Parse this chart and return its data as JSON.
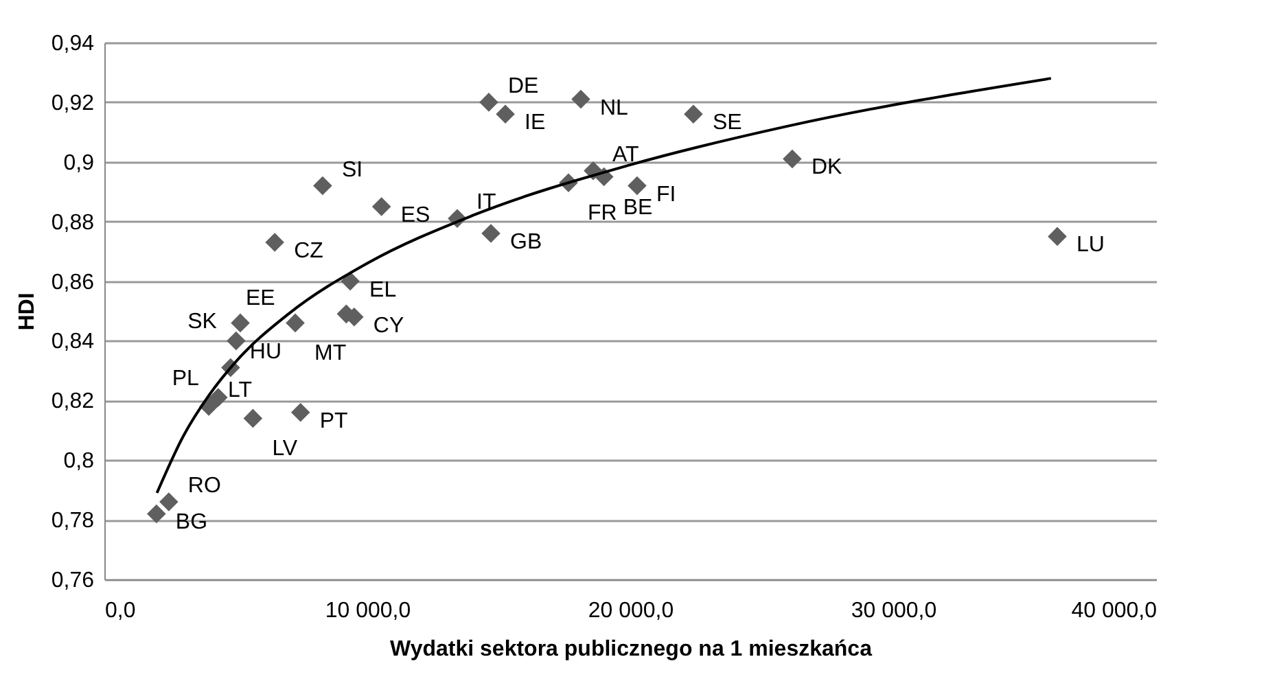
{
  "chart_data": {
    "type": "scatter",
    "xlabel": "Wydatki sektora publicznego na 1 mieszkańca",
    "ylabel": "HDI",
    "series": [
      {
        "color": "#5f5f5f",
        "marker": "diamond",
        "x": [
          1980,
          2450,
          3970,
          4330,
          4800,
          5650,
          7460,
          5170,
          5010,
          7260,
          6480,
          8300,
          10540,
          9350,
          9200,
          9500,
          13420,
          14570,
          14700,
          14620,
          15250,
          18120,
          17650,
          18590,
          19000,
          20260,
          22400,
          26160,
          36240
        ],
        "values": [
          0.782,
          0.786,
          0.818,
          0.821,
          0.831,
          0.814,
          0.816,
          0.846,
          0.84,
          0.846,
          0.873,
          0.892,
          0.885,
          0.86,
          0.849,
          0.848,
          0.881,
          null,
          0.876,
          0.92,
          0.916,
          0.921,
          0.893,
          0.897,
          0.895,
          0.892,
          0.916,
          0.901,
          0.875
        ]
      },
      {
        "type": "line",
        "color": "#000000",
        "x": [
          2000,
          3000,
          4000,
          5000,
          7000,
          10000,
          14000,
          20000,
          26000,
          36000
        ],
        "values": [
          0.789,
          0.808,
          0.822,
          0.833,
          0.849,
          0.866,
          0.882,
          0.899,
          0.912,
          0.928
        ]
      }
    ],
    "grid": "y",
    "xlim": [
      0,
      40000
    ],
    "xticks": [
      {
        "value": 0,
        "label": "0,0"
      },
      {
        "value": 10000,
        "label": "10 000,0"
      },
      {
        "value": 20000,
        "label": "20 000,0"
      },
      {
        "value": 30000,
        "label": "30 000,0"
      },
      {
        "value": 40000,
        "label": "40 000,0"
      }
    ],
    "ylim": [
      0.76,
      0.94
    ],
    "yticks": [
      {
        "value": 0.76,
        "label": "0,76"
      },
      {
        "value": 0.78,
        "label": "0,78"
      },
      {
        "value": 0.8,
        "label": "0,8"
      },
      {
        "value": 0.82,
        "label": "0,82"
      },
      {
        "value": 0.84,
        "label": "0,84"
      },
      {
        "value": 0.86,
        "label": "0,86"
      },
      {
        "value": 0.88,
        "label": "0,88"
      },
      {
        "value": 0.9,
        "label": "0,9"
      },
      {
        "value": 0.92,
        "label": "0,92"
      },
      {
        "value": 0.94,
        "label": "0,94"
      }
    ],
    "annotations": [
      {
        "text": "BG",
        "x": 1980,
        "y": 0.782
      },
      {
        "text": "RO",
        "x": 2450,
        "y": 0.786
      },
      {
        "text": "LT",
        "x": 3970,
        "y": 0.818
      },
      {
        "text": "PL",
        "x": 4330,
        "y": 0.821
      },
      {
        "text": "HU",
        "x": 4800,
        "y": 0.831
      },
      {
        "text": "LV",
        "x": 5650,
        "y": 0.814
      },
      {
        "text": "PT",
        "x": 7460,
        "y": 0.816
      },
      {
        "text": "SK",
        "x": 5010,
        "y": 0.84
      },
      {
        "text": "EE",
        "x": 5170,
        "y": 0.846
      },
      {
        "text": "CZ",
        "x": 6480,
        "y": 0.873
      },
      {
        "text": "SI",
        "x": 8300,
        "y": 0.892
      },
      {
        "text": "EL",
        "x": 9350,
        "y": 0.86
      },
      {
        "text": "MT",
        "x": 7260,
        "y": 0.846
      },
      {
        "text": "CY",
        "x": 9500,
        "y": 0.848
      },
      {
        "text": "ES",
        "x": 10540,
        "y": 0.885
      },
      {
        "text": "IT",
        "x": 13420,
        "y": 0.881
      },
      {
        "text": "GB",
        "x": 14700,
        "y": 0.876
      },
      {
        "text": "DE",
        "x": 14620,
        "y": 0.92
      },
      {
        "text": "IE",
        "x": 15250,
        "y": 0.916
      },
      {
        "text": "NL",
        "x": 18120,
        "y": 0.921
      },
      {
        "text": "FR",
        "x": 17650,
        "y": 0.893
      },
      {
        "text": "AT",
        "x": 18590,
        "y": 0.897
      },
      {
        "text": "BE",
        "x": 19000,
        "y": 0.895
      },
      {
        "text": "FI",
        "x": 20260,
        "y": 0.892
      },
      {
        "text": "SE",
        "x": 22400,
        "y": 0.916
      },
      {
        "text": "DK",
        "x": 26160,
        "y": 0.901
      },
      {
        "text": "LU",
        "x": 36240,
        "y": 0.875
      }
    ]
  }
}
